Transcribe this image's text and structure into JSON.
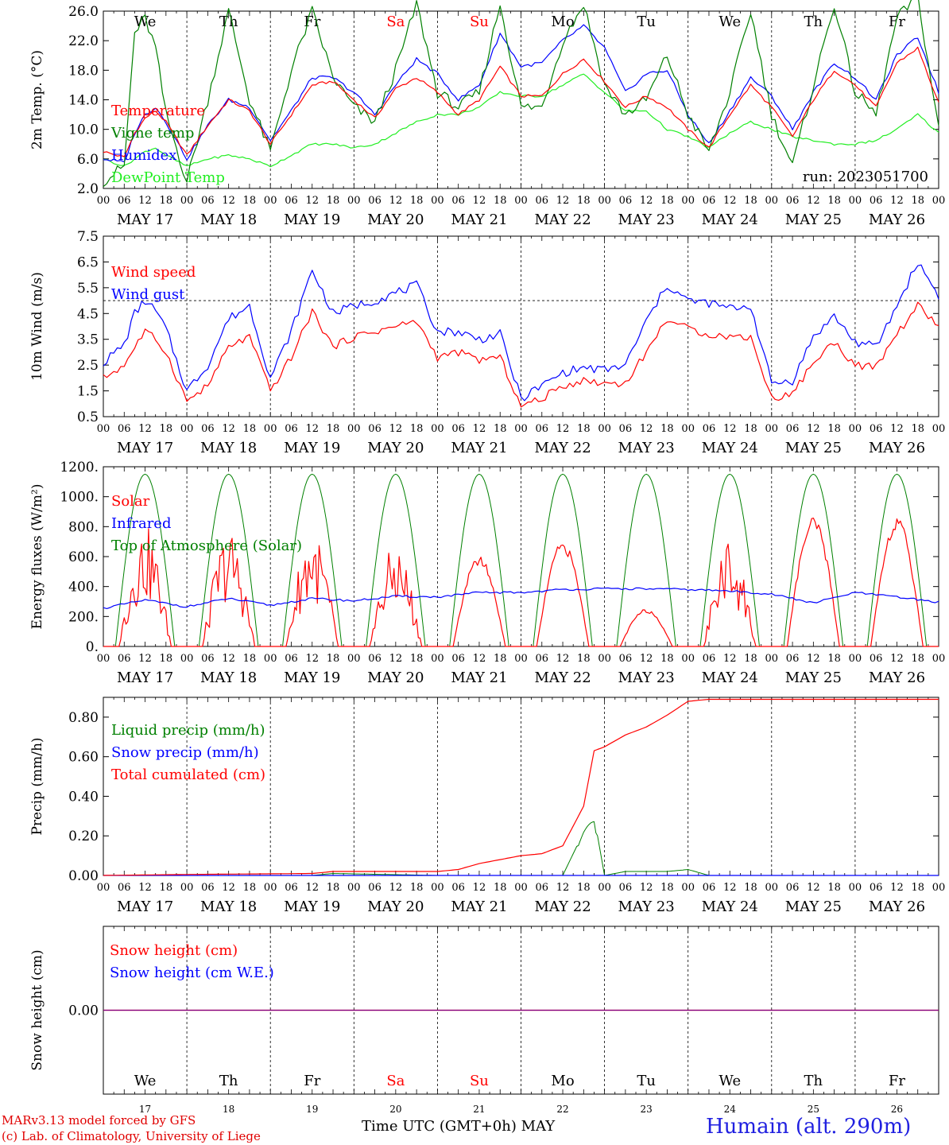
{
  "colors": {
    "red": "#ff0000",
    "dark_green": "#008000",
    "blue": "#0000ff",
    "light_green": "#22ee22",
    "purple": "#800080",
    "weekend": "#ff0000"
  },
  "figure": {
    "days": [
      "MAY 17",
      "MAY 18",
      "MAY 19",
      "MAY 20",
      "MAY 21",
      "MAY 22",
      "MAY 23",
      "MAY 24",
      "MAY 25",
      "MAY 26"
    ],
    "hour_ticks": [
      "00",
      "06",
      "12",
      "18"
    ],
    "end_tick": "00",
    "weekdays": [
      {
        "label": "We",
        "weekend": false
      },
      {
        "label": "Th",
        "weekend": false
      },
      {
        "label": "Fr",
        "weekend": false
      },
      {
        "label": "Sa",
        "weekend": true
      },
      {
        "label": "Su",
        "weekend": true
      },
      {
        "label": "Mo",
        "weekend": false
      },
      {
        "label": "Tu",
        "weekend": false
      },
      {
        "label": "We",
        "weekend": false
      },
      {
        "label": "Th",
        "weekend": false
      },
      {
        "label": "Fr",
        "weekend": false
      }
    ],
    "day_numbers": [
      "17",
      "18",
      "19",
      "20",
      "21",
      "22",
      "23",
      "24",
      "25",
      "26"
    ],
    "x_axis_title": "Time UTC (GMT+0h) MAY",
    "credit_line1": "MARv3.13 model forced by GFS",
    "credit_line2": "(c) Lab. of Climatology, University of Liege",
    "station": "Humain (alt. 290m)"
  },
  "chart_data": [
    {
      "id": "temp",
      "type": "line",
      "ylabel": "2m Temp. (°C)",
      "ylim": [
        2.0,
        26.0
      ],
      "yticks": [
        "2.0",
        "6.0",
        "10.0",
        "14.0",
        "18.0",
        "22.0",
        "26.0"
      ],
      "annotation": "run: 2023051700",
      "x_hours": [
        0,
        6,
        9,
        12,
        15,
        18,
        24,
        30,
        36,
        42,
        48,
        54,
        60,
        66,
        72,
        78,
        84,
        90,
        96,
        102,
        108,
        114,
        120,
        126,
        132,
        138,
        144,
        150,
        156,
        162,
        168,
        174,
        180,
        186,
        192,
        198,
        204,
        210,
        216,
        222,
        228,
        234,
        240
      ],
      "series": [
        {
          "name": "Temperature",
          "color": "red",
          "values": [
            7.0,
            6.2,
            9.5,
            11.5,
            12.5,
            11.0,
            6.5,
            10.5,
            14.0,
            12.5,
            8.0,
            12.0,
            16.0,
            16.5,
            14.0,
            11.5,
            15.5,
            17.0,
            15.0,
            12.0,
            14.0,
            18.5,
            14.5,
            14.5,
            17.5,
            19.5,
            16.5,
            13.0,
            14.5,
            13.0,
            10.0,
            7.5,
            12.0,
            16.0,
            13.0,
            9.0,
            14.0,
            18.0,
            16.0,
            13.0,
            19.0,
            21.0,
            13.5
          ]
        },
        {
          "name": "Vigne temp",
          "color": "dark_green",
          "values": [
            3.0,
            5.0,
            23.0,
            25.0,
            21.0,
            12.0,
            3.0,
            14.0,
            26.0,
            14.0,
            7.0,
            18.0,
            26.0,
            17.0,
            13.0,
            11.0,
            18.0,
            27.0,
            15.0,
            13.0,
            15.0,
            27.0,
            13.0,
            13.0,
            22.0,
            27.0,
            16.0,
            12.0,
            14.0,
            20.0,
            12.0,
            7.0,
            15.0,
            26.0,
            12.0,
            5.0,
            16.0,
            27.0,
            15.0,
            12.0,
            25.0,
            28.0,
            10.0
          ]
        },
        {
          "name": "Humidex",
          "color": "blue",
          "values": [
            6.0,
            5.5,
            9.5,
            12.0,
            13.0,
            11.0,
            6.0,
            10.5,
            14.0,
            13.0,
            8.5,
            12.5,
            17.0,
            17.0,
            15.0,
            12.0,
            16.0,
            19.5,
            17.5,
            14.0,
            16.0,
            23.0,
            18.5,
            19.0,
            22.0,
            24.0,
            21.0,
            15.0,
            17.5,
            18.0,
            12.0,
            8.0,
            12.5,
            17.0,
            14.5,
            10.0,
            15.0,
            19.0,
            17.0,
            14.0,
            20.0,
            22.5,
            15.0
          ]
        },
        {
          "name": "DewPoint Temp",
          "color": "light_green",
          "values": [
            6.0,
            5.0,
            6.0,
            7.0,
            7.5,
            6.5,
            5.0,
            6.0,
            6.5,
            6.0,
            5.0,
            6.5,
            8.0,
            8.0,
            7.5,
            8.0,
            9.5,
            11.0,
            12.0,
            12.0,
            13.0,
            15.0,
            14.5,
            14.5,
            16.0,
            17.5,
            15.0,
            12.5,
            12.5,
            10.0,
            9.0,
            7.5,
            9.5,
            11.0,
            10.0,
            9.0,
            8.5,
            8.0,
            8.0,
            8.5,
            10.0,
            12.0,
            9.5
          ]
        }
      ]
    },
    {
      "id": "wind",
      "type": "line",
      "ylabel": "10m Wind (m/s)",
      "ylim": [
        0.5,
        7.5
      ],
      "yticks": [
        "0.5",
        "1.5",
        "2.5",
        "3.5",
        "4.5",
        "5.5",
        "6.5",
        "7.5"
      ],
      "reference_line": 5.0,
      "x_hours": [
        0,
        6,
        9,
        12,
        15,
        18,
        24,
        30,
        36,
        42,
        48,
        54,
        60,
        66,
        72,
        78,
        84,
        90,
        96,
        102,
        108,
        114,
        120,
        126,
        132,
        138,
        144,
        150,
        156,
        162,
        168,
        174,
        180,
        186,
        192,
        198,
        204,
        210,
        216,
        222,
        228,
        234,
        240
      ],
      "series": [
        {
          "name": "Wind speed",
          "color": "red",
          "values": [
            2.0,
            2.5,
            3.2,
            3.8,
            3.5,
            3.0,
            1.1,
            1.7,
            3.2,
            3.6,
            1.5,
            2.8,
            4.6,
            3.2,
            3.6,
            3.8,
            4.0,
            4.2,
            2.8,
            3.0,
            2.7,
            2.8,
            0.9,
            1.2,
            1.7,
            1.9,
            1.8,
            1.8,
            3.0,
            4.3,
            3.9,
            3.7,
            3.6,
            3.6,
            1.2,
            1.4,
            2.6,
            3.4,
            2.5,
            2.4,
            3.7,
            4.8,
            4.0
          ]
        },
        {
          "name": "Wind gust",
          "color": "blue",
          "values": [
            2.6,
            3.3,
            4.5,
            5.0,
            4.6,
            3.9,
            1.5,
            2.5,
            4.3,
            4.8,
            2.0,
            3.8,
            6.2,
            4.5,
            4.8,
            5.0,
            5.3,
            5.6,
            3.8,
            3.8,
            3.5,
            3.7,
            1.2,
            1.7,
            2.2,
            2.4,
            2.3,
            2.5,
            4.2,
            5.6,
            5.0,
            4.9,
            4.7,
            4.8,
            1.8,
            1.9,
            3.6,
            4.4,
            3.4,
            3.2,
            4.8,
            6.5,
            5.2
          ]
        }
      ]
    },
    {
      "id": "flux",
      "type": "line",
      "ylabel": "Energy fluxes (W/m²)",
      "ylim": [
        0,
        1200
      ],
      "yticks": [
        "0.",
        "200.",
        "400.",
        "600.",
        "800.",
        "1000.",
        "1200."
      ],
      "solar_peaks": [
        850,
        820,
        820,
        720,
        600,
        700,
        250,
        760,
        860,
        860
      ],
      "toa_peak": 1150,
      "x_hours": [
        0,
        12,
        24,
        36,
        48,
        60,
        72,
        84,
        96,
        108,
        120,
        132,
        144,
        156,
        168,
        180,
        192,
        204,
        216,
        228,
        240
      ],
      "series": [
        {
          "name": "Solar",
          "color": "red",
          "values": []
        },
        {
          "name": "Infrared",
          "color": "blue",
          "values": [
            255,
            310,
            265,
            320,
            275,
            320,
            305,
            335,
            330,
            360,
            360,
            380,
            385,
            385,
            380,
            370,
            350,
            290,
            360,
            330,
            295
          ]
        },
        {
          "name": "Top of Atmosphere (Solar)",
          "color": "dark_green",
          "values": []
        }
      ]
    },
    {
      "id": "precip",
      "type": "line",
      "ylabel": "Precip (mm/h)",
      "ylim": [
        0.0,
        0.9
      ],
      "yticks": [
        "0.00",
        "0.20",
        "0.40",
        "0.60",
        "0.80"
      ],
      "x_hours": [
        0,
        24,
        60,
        66,
        96,
        102,
        108,
        114,
        120,
        126,
        132,
        138,
        141,
        144,
        150,
        156,
        162,
        168,
        174,
        180,
        240
      ],
      "series": [
        {
          "name": "Liquid precip (mm/h)",
          "color": "dark_green",
          "values": [
            0.0,
            0.0,
            0.0,
            0.01,
            0.0,
            0.0,
            0.0,
            0.0,
            0.0,
            0.0,
            0.0,
            0.22,
            0.3,
            0.0,
            0.02,
            0.02,
            0.02,
            0.03,
            0.0,
            0.0,
            0.0
          ]
        },
        {
          "name": "Snow precip (mm/h)",
          "color": "blue",
          "values": [
            0.0,
            0.0,
            0.0,
            0.0,
            0.0,
            0.0,
            0.0,
            0.0,
            0.0,
            0.0,
            0.0,
            0.0,
            0.0,
            0.0,
            0.0,
            0.0,
            0.0,
            0.0,
            0.0,
            0.0,
            0.0
          ]
        },
        {
          "name": "Total cumulated (cm)",
          "color": "red",
          "values": [
            0.0,
            0.005,
            0.01,
            0.02,
            0.02,
            0.03,
            0.06,
            0.08,
            0.1,
            0.11,
            0.15,
            0.35,
            0.63,
            0.65,
            0.71,
            0.75,
            0.81,
            0.88,
            0.89,
            0.89,
            0.89
          ]
        }
      ]
    },
    {
      "id": "snow",
      "type": "line",
      "ylabel": "Snow height (cm)",
      "ylim": [
        -1.0,
        1.0
      ],
      "yticks": [
        "0.00"
      ],
      "x_hours": [
        0,
        240
      ],
      "series": [
        {
          "name": "Snow height (cm)",
          "color": "red",
          "values": [
            0.0,
            0.0
          ]
        },
        {
          "name": "Snow height (cm W.E.)",
          "color": "blue",
          "values": [
            0.0,
            0.0
          ]
        }
      ]
    }
  ]
}
